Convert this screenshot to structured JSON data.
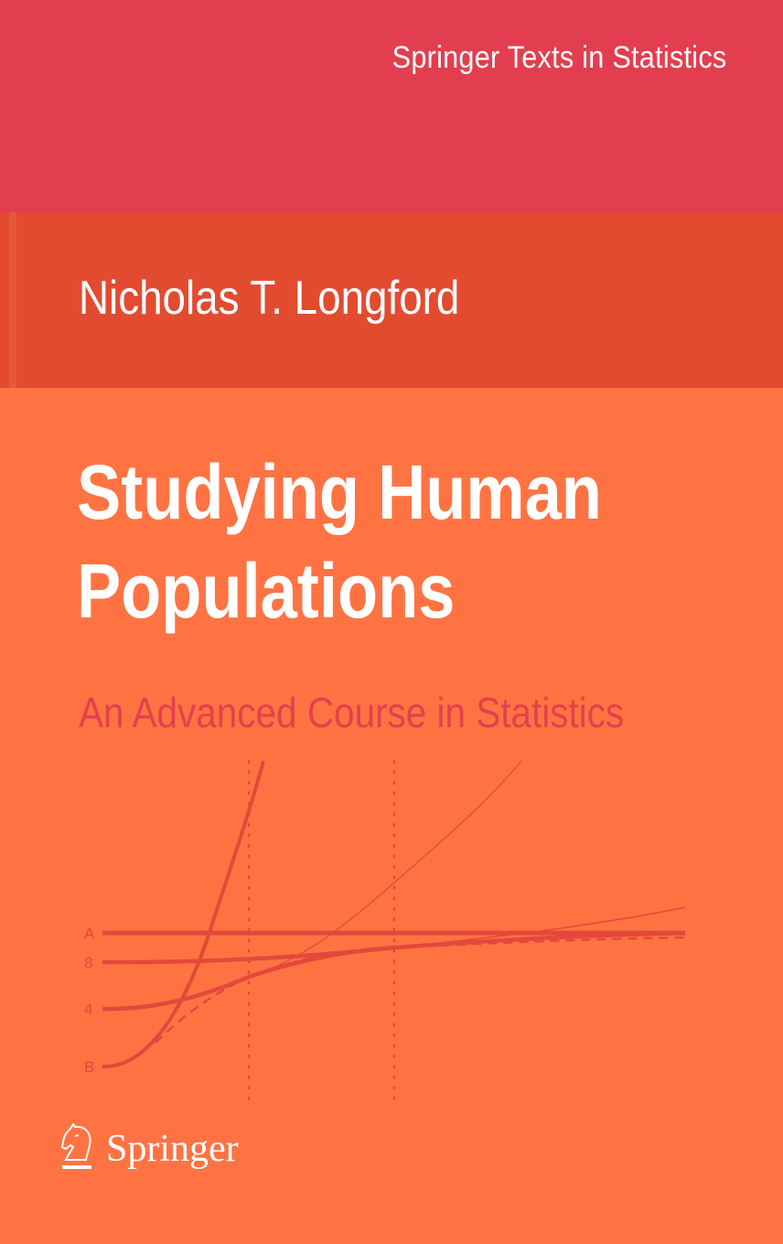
{
  "cover": {
    "series": "Springer Texts in Statistics",
    "author": "Nicholas T. Longford",
    "title_line1": "Studying Human",
    "title_line2": "Populations",
    "subtitle": "An Advanced Course in Statistics",
    "publisher": "Springer",
    "publisher_logo_icon": "knight-chess-horse-icon"
  },
  "figure": {
    "labels": [
      "A",
      "8",
      "4",
      "B"
    ]
  },
  "colors": {
    "series_band": "#E33E4F",
    "author_band": "#E24B30",
    "background": "#FF7343",
    "figure_lines": "#E4483A",
    "text": "#FFFFFF"
  }
}
